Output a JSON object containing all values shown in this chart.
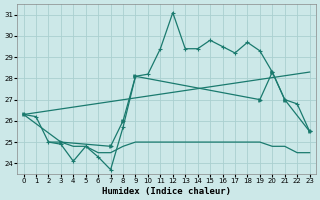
{
  "background_color": "#cce8e8",
  "grid_color": "#aad0d0",
  "line_color": "#1a7a6e",
  "xlabel": "Humidex (Indice chaleur)",
  "xlim": [
    -0.5,
    23.5
  ],
  "ylim": [
    23.5,
    31.5
  ],
  "xticks": [
    0,
    1,
    2,
    3,
    4,
    5,
    6,
    7,
    8,
    9,
    10,
    11,
    12,
    13,
    14,
    15,
    16,
    17,
    18,
    19,
    20,
    21,
    22,
    23
  ],
  "yticks": [
    24,
    25,
    26,
    27,
    28,
    29,
    30,
    31
  ],
  "line1_x": [
    0,
    1,
    2,
    3,
    4,
    5,
    6,
    7,
    8,
    9,
    10,
    11,
    12,
    13,
    14,
    15,
    16,
    17,
    18,
    19,
    20,
    21,
    22,
    23
  ],
  "line1_y": [
    26.3,
    26.2,
    25.0,
    24.9,
    24.1,
    24.8,
    24.3,
    23.7,
    25.7,
    28.1,
    28.2,
    29.4,
    31.1,
    29.4,
    29.4,
    29.8,
    29.5,
    29.2,
    29.7,
    29.3,
    28.3,
    27.0,
    26.8,
    25.5
  ],
  "line2_x": [
    0,
    3,
    7,
    8,
    9,
    19,
    20,
    21,
    23
  ],
  "line2_y": [
    26.3,
    25.0,
    24.8,
    26.0,
    28.1,
    27.0,
    28.3,
    27.0,
    25.5
  ],
  "line3_x": [
    0,
    23
  ],
  "line3_y": [
    26.3,
    28.3
  ],
  "line4_x": [
    2,
    3,
    4,
    5,
    6,
    7,
    8,
    9,
    10,
    11,
    12,
    13,
    14,
    15,
    16,
    17,
    18,
    19,
    20,
    21,
    22,
    23
  ],
  "line4_y": [
    25.0,
    25.0,
    24.8,
    24.8,
    24.5,
    24.5,
    24.8,
    25.0,
    25.0,
    25.0,
    25.0,
    25.0,
    25.0,
    25.0,
    25.0,
    25.0,
    25.0,
    25.0,
    24.8,
    24.8,
    24.5,
    24.5
  ]
}
